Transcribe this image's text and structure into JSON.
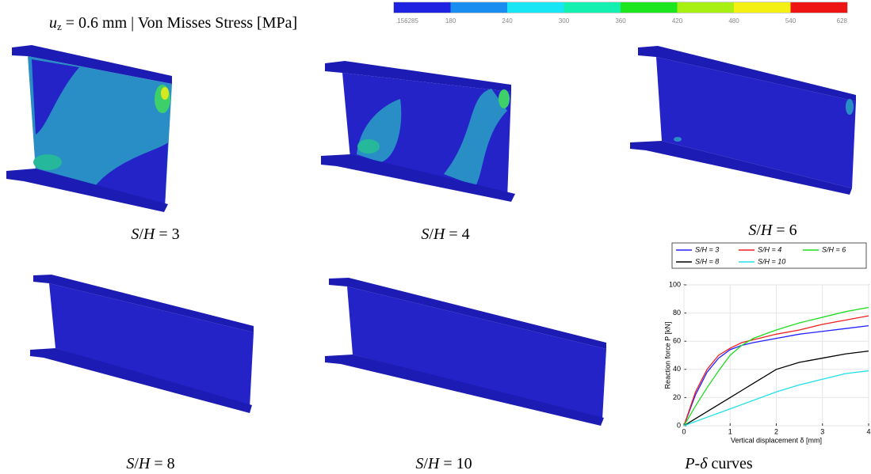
{
  "header": {
    "title": [
      "u",
      "z",
      " = 0.6 mm | Von Misses Stress [MPa]"
    ]
  },
  "colorbar": {
    "ticks": [
      {
        "value": 0.156285,
        "label": ".156285"
      },
      180,
      240,
      300,
      360,
      420,
      480,
      540,
      628
    ],
    "colors": [
      "#1f22e0",
      "#1a8ef0",
      "#19e6f5",
      "#14f0b0",
      "#1ee61e",
      "#a8f014",
      "#f5f014",
      "#ee1414"
    ]
  },
  "panels": [
    {
      "caption": [
        "S",
        "/",
        "H",
        " = 3"
      ]
    },
    {
      "caption": [
        "S",
        "/",
        "H",
        " = 4"
      ]
    },
    {
      "caption": [
        "S",
        "/",
        "H",
        " = 6"
      ]
    },
    {
      "caption": [
        "S",
        "/",
        "H",
        " = 8"
      ]
    },
    {
      "caption": [
        "S",
        "/",
        "H",
        " = 10"
      ]
    },
    {
      "caption": [
        "P",
        "-",
        "δ",
        " curves"
      ]
    }
  ],
  "chart_data": {
    "type": "line",
    "xlabel": "Vertical displacement δ [mm]",
    "ylabel": "Reaction force P [kN]",
    "x": [
      0,
      0.25,
      0.5,
      0.75,
      1,
      1.25,
      1.5,
      2,
      2.5,
      3,
      3.5,
      4
    ],
    "series": [
      {
        "name": "S/H = 3",
        "color": "#2020ff",
        "values": [
          0,
          22,
          38,
          48,
          54,
          57,
          59,
          62,
          65,
          67,
          69,
          71
        ]
      },
      {
        "name": "S/H = 4",
        "color": "#ee2020",
        "values": [
          0,
          24,
          40,
          50,
          55,
          59,
          61,
          65,
          68,
          72,
          75,
          78
        ]
      },
      {
        "name": "S/H = 6",
        "color": "#20dd20",
        "values": [
          0,
          14,
          27,
          39,
          50,
          57,
          62,
          68,
          73,
          77,
          81,
          84
        ]
      },
      {
        "name": "S/H = 8",
        "color": "#000000",
        "values": [
          0,
          5,
          10,
          15,
          20,
          25,
          30,
          40,
          45,
          48,
          51,
          53
        ]
      },
      {
        "name": "S/H = 10",
        "color": "#20e0e8",
        "values": [
          0,
          3,
          6,
          9,
          12,
          15,
          18,
          24,
          29,
          33,
          37,
          39
        ]
      }
    ],
    "xlim": [
      0,
      4
    ],
    "ylim": [
      0,
      100
    ],
    "xticks": [
      0,
      1,
      2,
      3,
      4
    ],
    "yticks": [
      0,
      20,
      40,
      60,
      80,
      100
    ],
    "grid": true
  }
}
